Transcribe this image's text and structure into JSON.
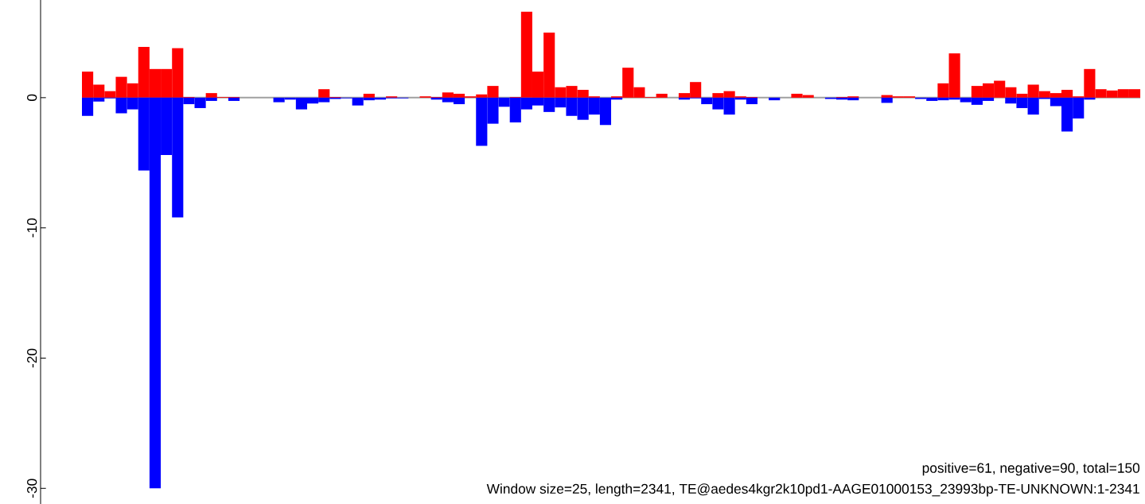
{
  "chart_data": {
    "type": "bar",
    "categories": [
      null,
      null,
      null,
      null,
      null,
      null,
      null,
      null,
      null,
      null,
      null,
      null,
      null,
      null,
      null,
      null,
      null,
      null,
      null,
      null,
      null,
      null,
      null,
      null,
      null,
      null,
      null,
      null,
      null,
      null,
      null,
      null,
      null,
      null,
      null,
      null,
      null,
      null,
      null,
      null,
      null,
      null,
      null,
      null,
      null,
      null,
      null,
      null,
      null,
      null,
      null,
      null,
      null,
      null,
      null,
      null,
      null,
      null,
      null,
      null,
      null,
      null,
      null,
      null,
      null,
      null,
      null,
      null,
      null,
      null,
      null,
      null,
      null,
      null,
      null,
      null,
      null,
      null,
      null,
      null,
      null,
      null,
      null,
      null,
      null,
      null,
      null,
      null,
      null,
      null,
      null,
      null,
      null,
      null
    ],
    "series": [
      {
        "color": "#ff0000",
        "values": [
          2.0,
          1.0,
          0.5,
          1.6,
          1.1,
          3.9,
          2.2,
          2.2,
          3.8,
          0.05,
          0,
          0.35,
          0.05,
          0.05,
          0,
          0,
          0,
          0,
          0,
          0,
          0,
          0.65,
          0.05,
          0,
          0,
          0.3,
          0,
          0.1,
          0,
          0,
          0.1,
          0.05,
          0.4,
          0.3,
          0.1,
          0.25,
          0.9,
          0,
          0.05,
          6.6,
          2.0,
          5.0,
          0.8,
          0.9,
          0.6,
          0.1,
          0,
          0.1,
          2.3,
          0.8,
          0.05,
          0.3,
          0,
          0.35,
          1.2,
          0,
          0.35,
          0.5,
          0.1,
          0.05,
          0,
          0,
          0,
          0.3,
          0.2,
          0,
          0,
          0.05,
          0.1,
          0,
          0,
          0.2,
          0.1,
          0.1,
          0,
          0,
          1.1,
          3.4,
          0,
          0.9,
          1.1,
          1.3,
          0.8,
          0.3,
          1.0,
          0.5,
          0.35,
          0.6,
          0.1,
          2.2,
          0.65,
          0.55,
          0.65,
          0.65
        ]
      },
      {
        "color": "#0000ff",
        "values": [
          -1.4,
          -0.3,
          -0.05,
          -1.2,
          -0.9,
          -5.6,
          -30,
          -4.4,
          -9.2,
          -0.5,
          -0.8,
          -0.25,
          0,
          -0.25,
          0,
          0,
          0,
          -0.35,
          -0.15,
          -0.9,
          -0.45,
          -0.35,
          -0.1,
          -0.05,
          -0.6,
          -0.2,
          -0.15,
          -0.05,
          -0.05,
          0,
          0,
          -0.15,
          -0.35,
          -0.5,
          0,
          -3.7,
          -2.0,
          -0.7,
          -1.9,
          -0.9,
          -0.6,
          -1.1,
          -0.75,
          -1.4,
          -1.7,
          -1.3,
          -2.1,
          -0.15,
          0,
          0,
          0,
          0,
          0,
          -0.15,
          -0.05,
          -0.5,
          -0.9,
          -1.3,
          -0.15,
          -0.5,
          0,
          -0.2,
          0,
          0,
          0,
          0,
          -0.1,
          -0.15,
          -0.2,
          0,
          0,
          -0.4,
          0,
          0,
          -0.1,
          -0.25,
          -0.2,
          -0.15,
          -0.35,
          -0.55,
          -0.25,
          0,
          -0.45,
          -0.8,
          -1.3,
          -0.1,
          -0.65,
          -2.6,
          -1.6,
          -0.15,
          0,
          0,
          0,
          0
        ]
      }
    ],
    "ylim": [
      -31.2,
      7.5
    ],
    "yticks": [
      -30,
      -20,
      -10,
      0
    ],
    "tick_labels": "y",
    "ref_lines": [
      {
        "axis": "y",
        "value": 0,
        "color": "#a0a0a0"
      }
    ],
    "annotations": [
      "positive=61, negative=90, total=150",
      "Window size=25, length=2341, TE@aedes4kgr2k10pd1-AAGE01000153_23993bp-TE-UNKNOWN:1-2341"
    ]
  }
}
